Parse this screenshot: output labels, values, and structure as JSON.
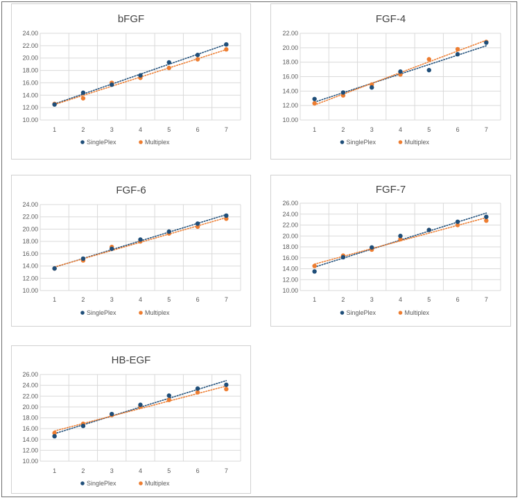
{
  "colors": {
    "singleplex": "#1f4e79",
    "multiplex": "#ed7d31"
  },
  "chart_data": [
    {
      "type": "scatter",
      "title": "bFGF",
      "categories": [
        "1",
        "2",
        "3",
        "4",
        "5",
        "6",
        "7"
      ],
      "ylim": [
        10,
        24
      ],
      "ystep": 2,
      "ytick_labels": [
        "10.00",
        "12.00",
        "14.00",
        "16.00",
        "18.00",
        "20.00",
        "22.00",
        "24.00"
      ],
      "grid": true,
      "trendline": "linear, dotted",
      "legend_position": "bottom",
      "series": [
        {
          "name": "SinglePlex",
          "values": [
            12.5,
            14.4,
            15.7,
            17.2,
            19.3,
            20.5,
            22.2
          ]
        },
        {
          "name": "Multiplex",
          "values": [
            12.6,
            13.5,
            16.0,
            16.8,
            18.4,
            19.8,
            21.4
          ]
        }
      ]
    },
    {
      "type": "scatter",
      "title": "FGF-4",
      "categories": [
        "1",
        "2",
        "3",
        "4",
        "5",
        "6",
        "7"
      ],
      "ylim": [
        10,
        22
      ],
      "ystep": 2,
      "ytick_labels": [
        "10.00",
        "12.00",
        "14.00",
        "16.00",
        "18.00",
        "20.00",
        "22.00"
      ],
      "grid": true,
      "trendline": "linear, dotted",
      "legend_position": "bottom",
      "series": [
        {
          "name": "SinglePlex",
          "values": [
            12.9,
            13.8,
            14.5,
            16.7,
            16.9,
            19.1,
            20.7
          ]
        },
        {
          "name": "Multiplex",
          "values": [
            12.3,
            13.4,
            14.9,
            16.3,
            18.4,
            19.8,
            20.8
          ]
        }
      ]
    },
    {
      "type": "scatter",
      "title": "FGF-6",
      "categories": [
        "1",
        "2",
        "3",
        "4",
        "5",
        "6",
        "7"
      ],
      "ylim": [
        10,
        24
      ],
      "ystep": 2,
      "ytick_labels": [
        "10.00",
        "12.00",
        "14.00",
        "16.00",
        "18.00",
        "20.00",
        "22.00",
        "24.00"
      ],
      "grid": true,
      "trendline": "linear, dotted",
      "legend_position": "bottom",
      "series": [
        {
          "name": "SinglePlex",
          "values": [
            13.6,
            15.2,
            16.8,
            18.3,
            19.6,
            20.9,
            22.2
          ]
        },
        {
          "name": "Multiplex",
          "values": [
            13.6,
            14.9,
            17.1,
            18.0,
            19.3,
            20.4,
            21.7
          ]
        }
      ]
    },
    {
      "type": "scatter",
      "title": "FGF-7",
      "categories": [
        "1",
        "2",
        "3",
        "4",
        "5",
        "6",
        "7"
      ],
      "ylim": [
        10,
        26
      ],
      "ystep": 2,
      "ytick_labels": [
        "10.00",
        "12.00",
        "14.00",
        "16.00",
        "18.00",
        "20.00",
        "22.00",
        "24.00",
        "26.00"
      ],
      "grid": true,
      "trendline": "linear, dotted",
      "legend_position": "bottom",
      "series": [
        {
          "name": "SinglePlex",
          "values": [
            13.5,
            16.1,
            17.9,
            20.0,
            21.1,
            22.6,
            23.5
          ]
        },
        {
          "name": "Multiplex",
          "values": [
            14.5,
            16.4,
            17.5,
            19.4,
            21.1,
            22.0,
            22.8
          ]
        }
      ]
    },
    {
      "type": "scatter",
      "title": "HB-EGF",
      "categories": [
        "1",
        "2",
        "3",
        "4",
        "5",
        "6",
        "7"
      ],
      "ylim": [
        10,
        26
      ],
      "ystep": 2,
      "ytick_labels": [
        "10.00",
        "12.00",
        "14.00",
        "16.00",
        "18.00",
        "20.00",
        "22.00",
        "24.00",
        "26.00"
      ],
      "grid": true,
      "trendline": "linear, dotted",
      "legend_position": "bottom",
      "series": [
        {
          "name": "SinglePlex",
          "values": [
            14.6,
            16.5,
            18.7,
            20.4,
            22.1,
            23.4,
            24.1
          ]
        },
        {
          "name": "Multiplex",
          "values": [
            15.2,
            16.9,
            18.5,
            20.1,
            21.3,
            22.7,
            23.3
          ]
        }
      ]
    }
  ]
}
